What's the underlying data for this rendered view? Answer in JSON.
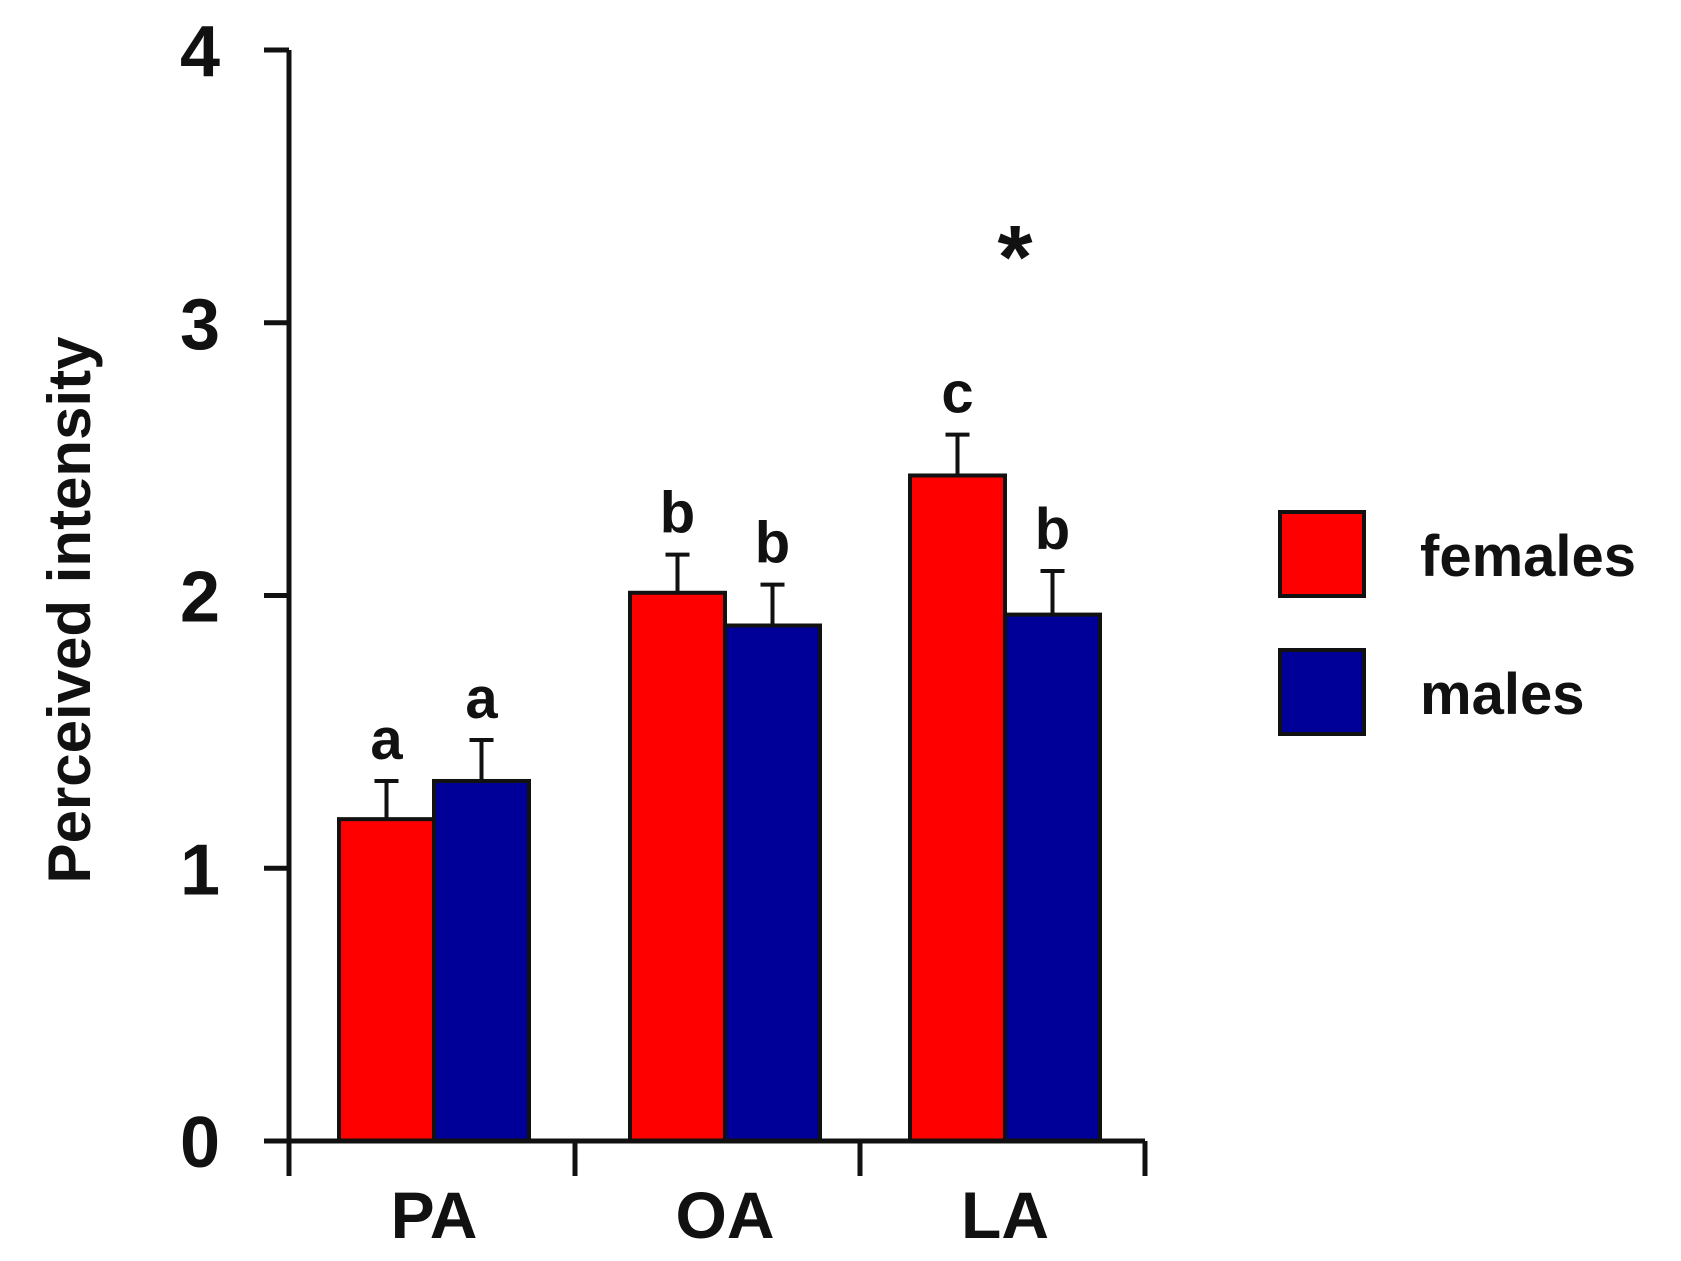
{
  "chart_data": {
    "type": "bar",
    "title": "",
    "xlabel": "",
    "ylabel": "Perceived intensity",
    "ylim": [
      0,
      4
    ],
    "yticks": [
      "0",
      "1",
      "2",
      "3",
      "4"
    ],
    "categories": [
      "PA",
      "OA",
      "LA"
    ],
    "series": [
      {
        "name": "females",
        "color": "#ff0000",
        "values": [
          1.18,
          2.01,
          2.44
        ],
        "errors": [
          0.14,
          0.14,
          0.15
        ],
        "letters": [
          "a",
          "b",
          "c"
        ]
      },
      {
        "name": "males",
        "color": "#000099",
        "values": [
          1.32,
          1.89,
          1.93
        ],
        "errors": [
          0.15,
          0.15,
          0.16
        ],
        "letters": [
          "a",
          "b",
          "b"
        ]
      }
    ],
    "annotations": [
      {
        "category": "LA",
        "text": "*"
      }
    ],
    "legend_position": "right"
  }
}
